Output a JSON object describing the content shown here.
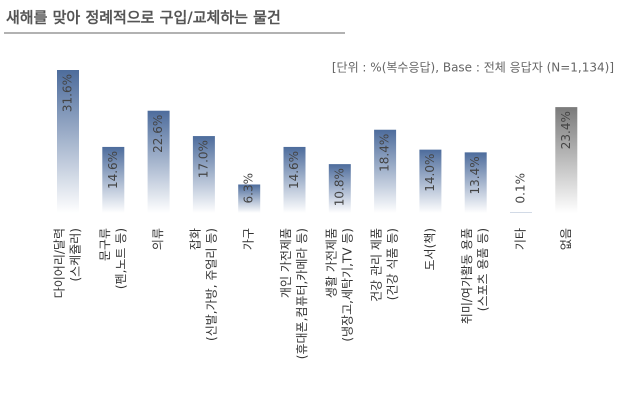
{
  "chart_data": {
    "type": "bar",
    "title": "새해를 맞아 정례적으로 구입/교체하는 물건",
    "subtitle": "[단위 : %(복수응답), Base : 전체 응답자 (N=1,134)]",
    "categories": [
      [
        "다이어리/달력",
        "(스케쥴러)"
      ],
      [
        "문구류",
        "(펜,노트 등)"
      ],
      [
        "의류"
      ],
      [
        "잡화",
        "(신발,가방, 쥬얼리 등)"
      ],
      [
        "가구"
      ],
      [
        "개인 가전제품",
        "(휴대폰,컴퓨터,카메라 등)"
      ],
      [
        "생활 가전제품",
        "(냉장고,세탁기,TV 등)"
      ],
      [
        "건강 관리 제품",
        "(건강 식품 등)"
      ],
      [
        "도서(책)"
      ],
      [
        "취미/여가활동 용품",
        "(스포츠 용품 등)"
      ],
      [
        "기타"
      ],
      [
        "없음"
      ]
    ],
    "values": [
      31.6,
      14.6,
      22.6,
      17.0,
      6.3,
      14.6,
      10.8,
      18.4,
      14.0,
      13.4,
      0.1,
      23.4
    ],
    "value_labels": [
      "31.6%",
      "14.6%",
      "22.6%",
      "17.0%",
      "6.3%",
      "14.6%",
      "10.8%",
      "18.4%",
      "14.0%",
      "13.4%",
      "0.1%",
      "23.4%"
    ],
    "colors": [
      "#4d6c9c",
      "#4d6c9c",
      "#4d6c9c",
      "#4d6c9c",
      "#4d6c9c",
      "#4d6c9c",
      "#4d6c9c",
      "#4d6c9c",
      "#4d6c9c",
      "#4d6c9c",
      "#4d6c9c",
      "#7a7a7a"
    ]
  }
}
